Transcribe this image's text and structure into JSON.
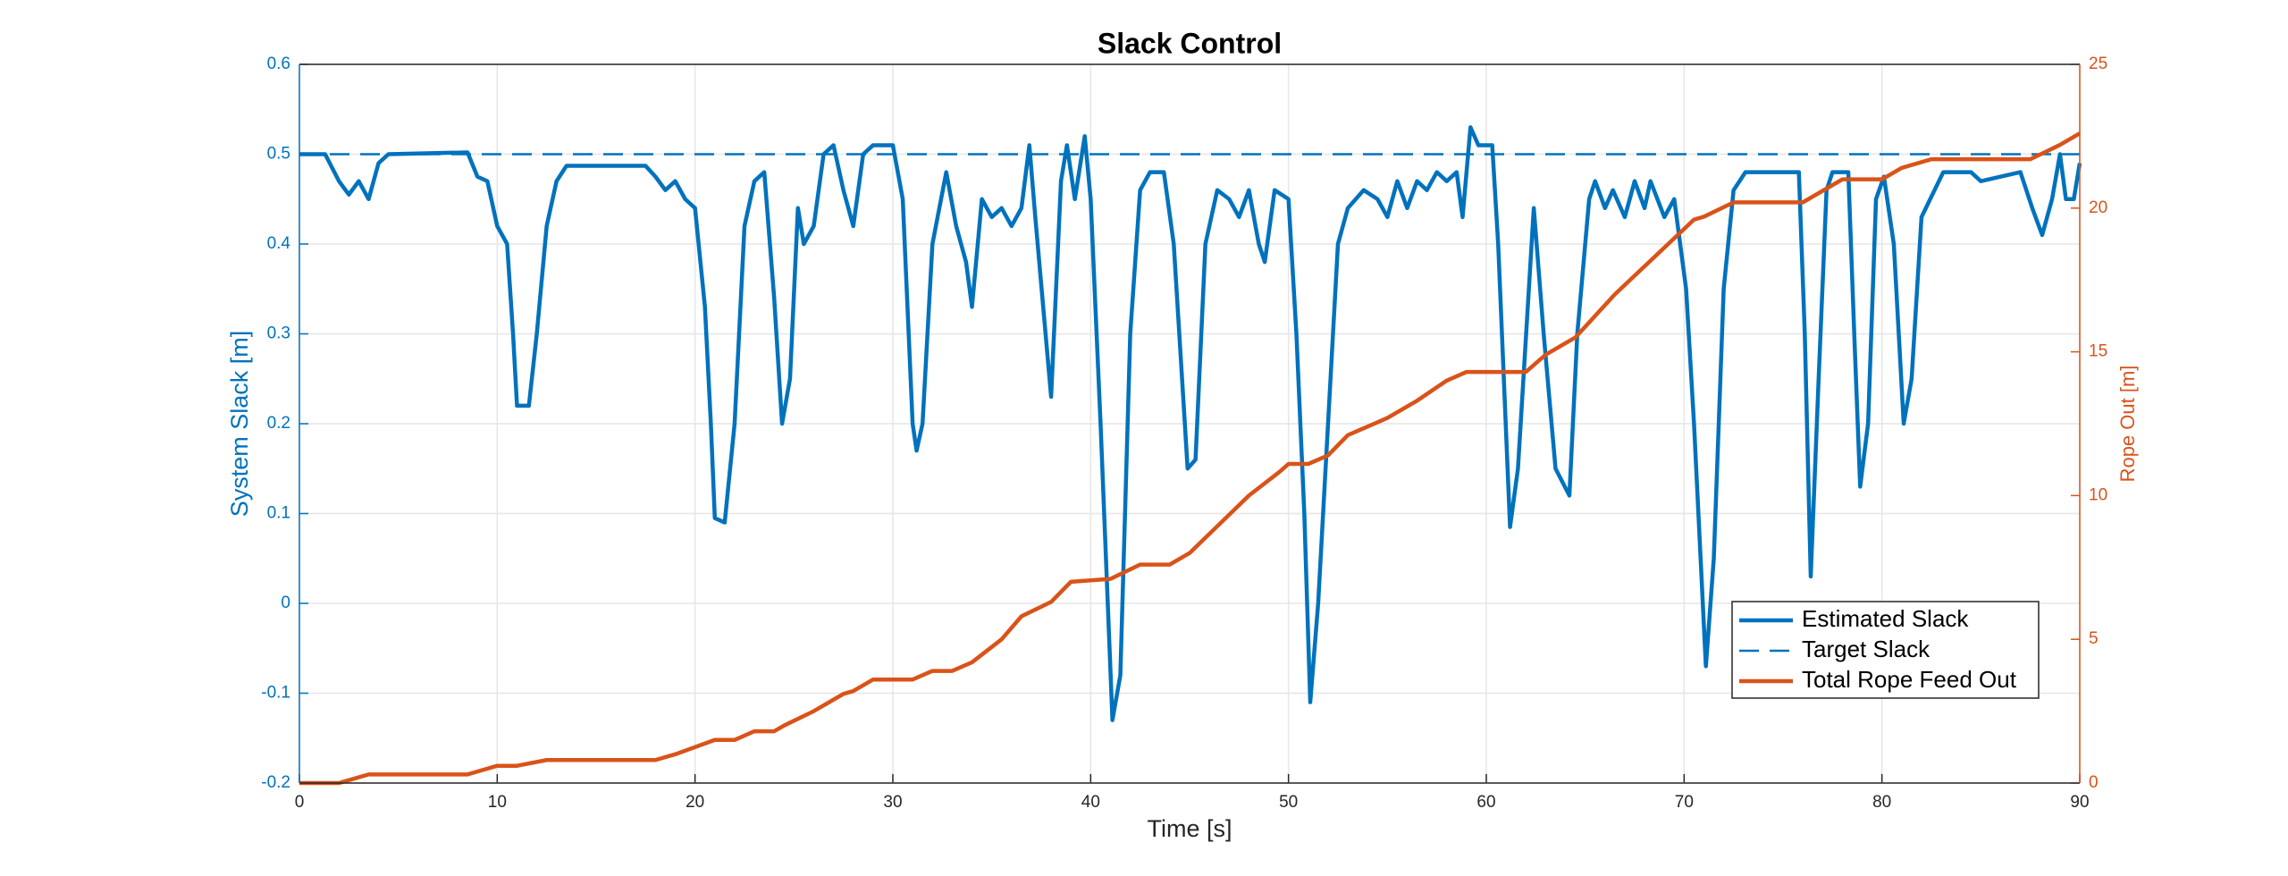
{
  "chart_data": {
    "type": "line",
    "title": "Slack Control",
    "xlabel": "Time [s]",
    "ylabel": "System Slack [m]",
    "y2label": "Rope Out [m]",
    "xlim": [
      0,
      90
    ],
    "xticks": [
      0,
      10,
      20,
      30,
      40,
      50,
      60,
      70,
      80,
      90
    ],
    "ylim": [
      -0.2,
      0.6
    ],
    "yticks": [
      -0.2,
      -0.1,
      0,
      0.1,
      0.2,
      0.3,
      0.4,
      0.5,
      0.6
    ],
    "y2lim": [
      0,
      25
    ],
    "y2ticks": [
      0,
      5,
      10,
      15,
      20,
      25
    ],
    "grid": true,
    "legend": "southeast",
    "series": [
      {
        "name": "Estimated Slack",
        "color": "#0072BD",
        "style": "solid",
        "x": [
          0,
          1.3,
          2,
          2.5,
          3,
          3.5,
          4,
          4.5,
          8.5,
          9,
          9.5,
          10,
          10.5,
          10.8,
          11,
          11.6,
          12,
          12.5,
          13,
          13.5,
          17.5,
          18,
          18.5,
          19,
          19.5,
          20,
          20.5,
          20.8,
          21,
          21.5,
          22,
          22.5,
          23,
          23.5,
          24,
          24.4,
          24.8,
          25.2,
          25.5,
          26,
          26.5,
          27,
          27.5,
          28,
          28.5,
          29,
          30,
          30.5,
          31,
          31.2,
          31.5,
          32,
          32.7,
          33.2,
          33.7,
          34,
          34.5,
          35,
          35.5,
          36,
          36.5,
          36.9,
          37.2,
          38,
          38.5,
          38.8,
          39.2,
          39.7,
          40,
          40.5,
          41.1,
          41.5,
          42,
          42.5,
          43,
          43.7,
          44.2,
          44.9,
          45.3,
          45.8,
          46.4,
          47,
          47.5,
          48,
          48.5,
          48.8,
          49.3,
          50,
          50.4,
          50.8,
          51.1,
          51.5,
          52,
          52.5,
          53,
          53.8,
          54.5,
          55,
          55.5,
          56,
          56.5,
          57,
          57.5,
          58,
          58.5,
          58.8,
          59.2,
          59.6,
          60.3,
          60.6,
          61.2,
          61.6,
          62.4,
          62.9,
          63.5,
          64.2,
          64.6,
          65.2,
          65.5,
          66,
          66.4,
          67,
          67.5,
          68,
          68.3,
          69,
          69.5,
          70.1,
          70.5,
          71.1,
          71.5,
          72,
          72.5,
          73.1,
          75.8,
          76.1,
          76.4,
          76.8,
          77.2,
          77.5,
          78.3,
          78.6,
          78.9,
          79.3,
          79.7,
          80.1,
          80.6,
          81.1,
          81.5,
          82,
          83.1,
          84.5,
          85,
          87,
          87.6,
          88.1,
          88.6,
          89,
          89.3,
          89.7,
          90
        ],
        "values": [
          0.5,
          0.5,
          0.47,
          0.455,
          0.47,
          0.45,
          0.49,
          0.5,
          0.502,
          0.475,
          0.47,
          0.42,
          0.4,
          0.3,
          0.22,
          0.22,
          0.3,
          0.42,
          0.47,
          0.487,
          0.487,
          0.475,
          0.46,
          0.47,
          0.45,
          0.44,
          0.33,
          0.2,
          0.095,
          0.09,
          0.2,
          0.42,
          0.47,
          0.48,
          0.34,
          0.2,
          0.25,
          0.44,
          0.4,
          0.42,
          0.5,
          0.51,
          0.46,
          0.42,
          0.5,
          0.51,
          0.51,
          0.45,
          0.2,
          0.17,
          0.2,
          0.4,
          0.48,
          0.42,
          0.38,
          0.33,
          0.45,
          0.43,
          0.44,
          0.42,
          0.44,
          0.51,
          0.43,
          0.23,
          0.47,
          0.51,
          0.45,
          0.52,
          0.45,
          0.2,
          -0.13,
          -0.08,
          0.3,
          0.46,
          0.48,
          0.48,
          0.4,
          0.15,
          0.16,
          0.4,
          0.46,
          0.45,
          0.43,
          0.46,
          0.4,
          0.38,
          0.46,
          0.45,
          0.3,
          0.1,
          -0.11,
          0,
          0.2,
          0.4,
          0.44,
          0.46,
          0.45,
          0.43,
          0.47,
          0.44,
          0.47,
          0.46,
          0.48,
          0.47,
          0.48,
          0.43,
          0.53,
          0.51,
          0.51,
          0.4,
          0.085,
          0.15,
          0.44,
          0.3,
          0.15,
          0.12,
          0.3,
          0.45,
          0.47,
          0.44,
          0.46,
          0.43,
          0.47,
          0.44,
          0.47,
          0.43,
          0.45,
          0.35,
          0.2,
          -0.07,
          0.05,
          0.35,
          0.46,
          0.48,
          0.48,
          0.3,
          0.03,
          0.25,
          0.46,
          0.48,
          0.48,
          0.3,
          0.13,
          0.2,
          0.45,
          0.475,
          0.4,
          0.2,
          0.25,
          0.43,
          0.48,
          0.48,
          0.47,
          0.48,
          0.44,
          0.41,
          0.45,
          0.5,
          0.45,
          0.45,
          0.49
        ]
      },
      {
        "name": "Target Slack",
        "color": "#0072BD",
        "style": "dashed",
        "x": [
          0,
          90
        ],
        "values": [
          0.5,
          0.5
        ]
      },
      {
        "name": "Total Rope Feed Out",
        "color": "#D95319",
        "style": "solid",
        "axis": "y2",
        "x": [
          0,
          2,
          3.5,
          8.5,
          10,
          11,
          12.5,
          18,
          19,
          21,
          22,
          23,
          24,
          24.5,
          26,
          27.5,
          28,
          29,
          31,
          32,
          33,
          34,
          35.5,
          36.5,
          38,
          39,
          41,
          42.5,
          44,
          45,
          46.5,
          48,
          49.5,
          50,
          51,
          52,
          53,
          55,
          56.5,
          58,
          59,
          62,
          63,
          64.5,
          66.5,
          68.5,
          70.5,
          71,
          72.5,
          76,
          77,
          78,
          80,
          81,
          82.5,
          87.5,
          89,
          90
        ],
        "values": [
          0,
          0,
          0.3,
          0.3,
          0.6,
          0.6,
          0.8,
          0.8,
          1.0,
          1.5,
          1.5,
          1.8,
          1.8,
          2.0,
          2.5,
          3.1,
          3.2,
          3.6,
          3.6,
          3.9,
          3.9,
          4.2,
          5.0,
          5.8,
          6.3,
          7.0,
          7.1,
          7.6,
          7.6,
          8.0,
          9.0,
          10.0,
          10.8,
          11.1,
          11.1,
          11.4,
          12.1,
          12.7,
          13.3,
          14.0,
          14.3,
          14.3,
          14.9,
          15.5,
          17.0,
          18.3,
          19.6,
          19.7,
          20.2,
          20.2,
          20.6,
          21.0,
          21.0,
          21.4,
          21.7,
          21.7,
          22.2,
          22.6
        ]
      }
    ]
  }
}
